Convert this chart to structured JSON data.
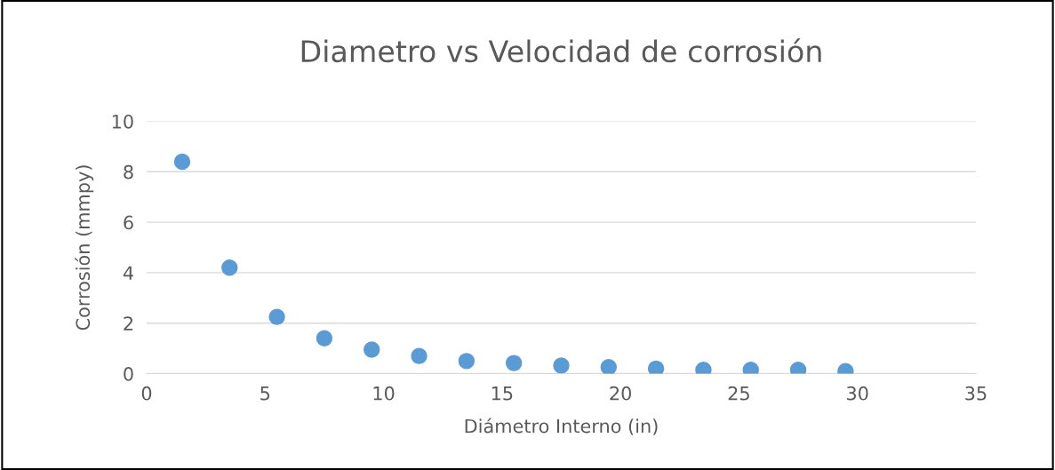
{
  "chart_data": {
    "type": "scatter",
    "title": "Diametro vs Velocidad de corrosión",
    "xlabel": "Diámetro Interno (in)",
    "ylabel": "Corrosión (mmpy)",
    "x": [
      1.5,
      3.5,
      5.5,
      7.5,
      9.5,
      11.5,
      13.5,
      15.5,
      17.5,
      19.5,
      21.5,
      23.5,
      25.5,
      27.5,
      29.5
    ],
    "series": [
      {
        "color": "#5b9bd5",
        "values": [
          8.4,
          4.2,
          2.25,
          1.4,
          0.95,
          0.7,
          0.5,
          0.42,
          0.32,
          0.26,
          0.2,
          0.15,
          0.15,
          0.15,
          0.1
        ]
      }
    ],
    "xlim": [
      0,
      35
    ],
    "xticks": [
      0,
      5,
      10,
      15,
      20,
      25,
      30,
      35
    ],
    "ylim": [
      0,
      10
    ],
    "yticks": [
      0,
      2,
      4,
      6,
      8,
      10
    ],
    "grid": "y",
    "marker": "circle",
    "legend": false
  }
}
